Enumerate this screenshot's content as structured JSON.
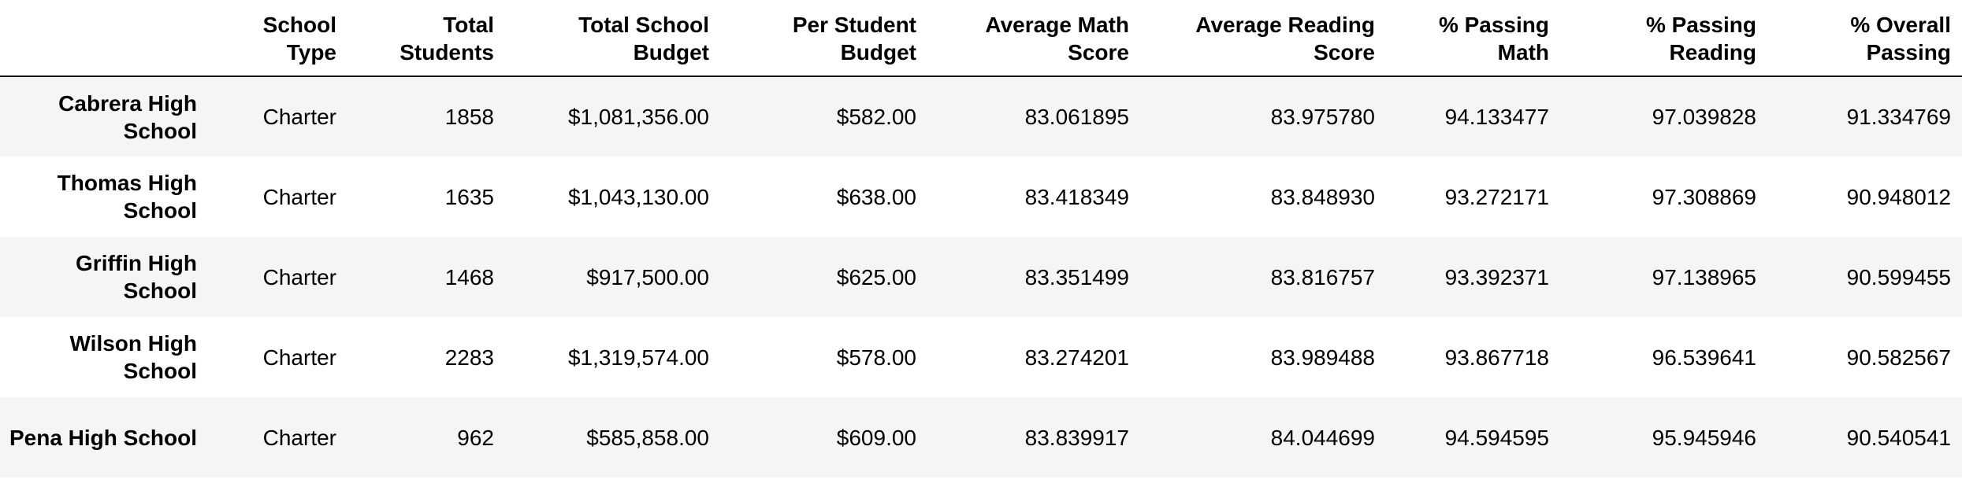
{
  "table": {
    "columns": [
      "",
      "School Type",
      "Total Students",
      "Total School Budget",
      "Per Student Budget",
      "Average Math Score",
      "Average Reading Score",
      "% Passing Math",
      "% Passing Reading",
      "% Overall Passing"
    ],
    "rows": [
      {
        "school": "Cabrera High School",
        "school_type": "Charter",
        "total_students": "1858",
        "total_budget": "$1,081,356.00",
        "per_student_budget": "$582.00",
        "avg_math": "83.061895",
        "avg_reading": "83.975780",
        "pct_math": "94.133477",
        "pct_reading": "97.039828",
        "pct_overall": "91.334769"
      },
      {
        "school": "Thomas High School",
        "school_type": "Charter",
        "total_students": "1635",
        "total_budget": "$1,043,130.00",
        "per_student_budget": "$638.00",
        "avg_math": "83.418349",
        "avg_reading": "83.848930",
        "pct_math": "93.272171",
        "pct_reading": "97.308869",
        "pct_overall": "90.948012"
      },
      {
        "school": "Griffin High School",
        "school_type": "Charter",
        "total_students": "1468",
        "total_budget": "$917,500.00",
        "per_student_budget": "$625.00",
        "avg_math": "83.351499",
        "avg_reading": "83.816757",
        "pct_math": "93.392371",
        "pct_reading": "97.138965",
        "pct_overall": "90.599455"
      },
      {
        "school": "Wilson High School",
        "school_type": "Charter",
        "total_students": "2283",
        "total_budget": "$1,319,574.00",
        "per_student_budget": "$578.00",
        "avg_math": "83.274201",
        "avg_reading": "83.989488",
        "pct_math": "93.867718",
        "pct_reading": "96.539641",
        "pct_overall": "90.582567"
      },
      {
        "school": "Pena High School",
        "school_type": "Charter",
        "total_students": "962",
        "total_budget": "$585,858.00",
        "per_student_budget": "$609.00",
        "avg_math": "83.839917",
        "avg_reading": "84.044699",
        "pct_math": "94.594595",
        "pct_reading": "95.945946",
        "pct_overall": "90.540541"
      }
    ]
  },
  "colors": {
    "row_shade": "#f5f5f5",
    "row_plain": "#ffffff",
    "header_rule": "#000000",
    "text": "#000000"
  }
}
